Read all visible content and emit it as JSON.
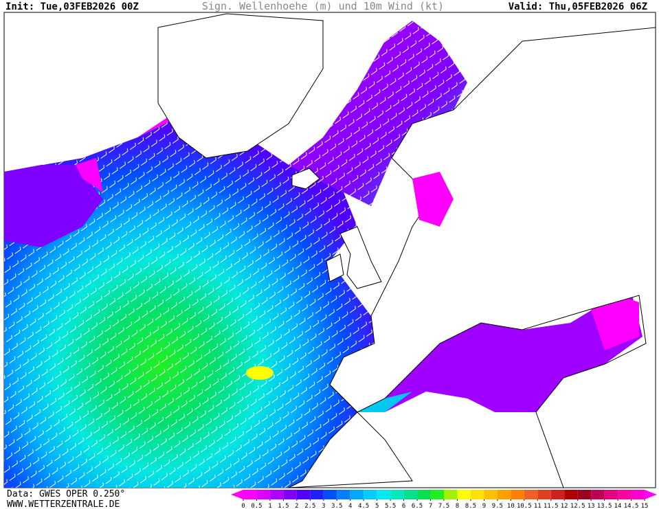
{
  "header": {
    "init": "Init: Tue,03FEB2026 00Z",
    "title": "Sign. Wellenhoehe (m) und 10m Wind (kt)",
    "valid": "Valid: Thu,05FEB2026 06Z"
  },
  "footer": {
    "source": "Data: GWES OPER 0.250°",
    "site": "WWW.WETTERZENTRALE.DE"
  },
  "legend": {
    "ticks": [
      0,
      0.5,
      1,
      1.5,
      2,
      2.5,
      3,
      3.5,
      4,
      4.5,
      5,
      5.5,
      6,
      6.5,
      7,
      7.5,
      8,
      8.5,
      9,
      9.5,
      10,
      10.5,
      11,
      11.5,
      12,
      12.5,
      13,
      13.5,
      14,
      14.5,
      15
    ],
    "colors": [
      "#ff00ff",
      "#dd00ff",
      "#b000ff",
      "#8000ff",
      "#5000ff",
      "#2020ff",
      "#0050ff",
      "#0080ff",
      "#00a8ff",
      "#00ccff",
      "#00e8f0",
      "#00e8c0",
      "#00e090",
      "#00e050",
      "#20f020",
      "#a0f000",
      "#ffff00",
      "#ffe000",
      "#ffc000",
      "#ffa000",
      "#ff8000",
      "#f06020",
      "#e04020",
      "#d02020",
      "#b00000",
      "#a00020",
      "#c00050",
      "#e00080",
      "#ff00a0",
      "#ff00d0"
    ],
    "under_color": "#ff00ff",
    "over_color": "#ff00ff"
  }
}
